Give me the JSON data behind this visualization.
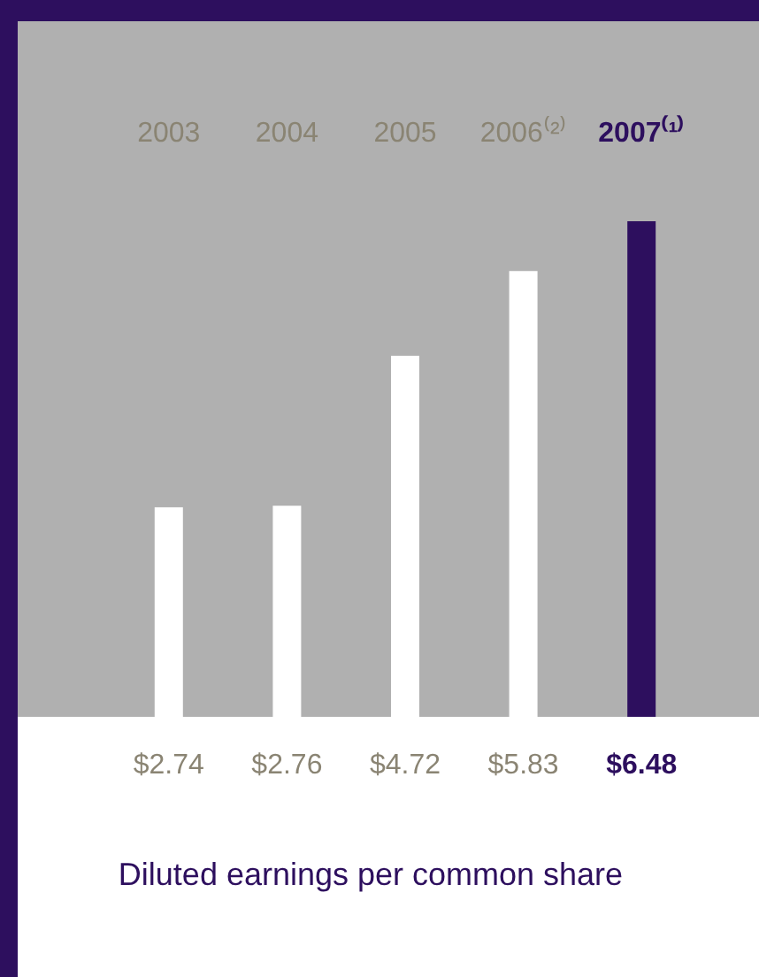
{
  "chart_data": {
    "type": "bar",
    "title": "Diluted earnings per common share",
    "categories": [
      "2003",
      "2004",
      "2005",
      "2006⁽²⁾",
      "2007⁽¹⁾"
    ],
    "values": [
      2.74,
      2.76,
      4.72,
      5.83,
      6.48
    ],
    "colors": [
      "#ffffff",
      "#ffffff",
      "#ffffff",
      "#ffffff",
      "#2d0f5e"
    ],
    "value_labels": [
      "$2.74",
      "$2.76",
      "$4.72",
      "$5.83",
      "$6.48"
    ]
  }
}
